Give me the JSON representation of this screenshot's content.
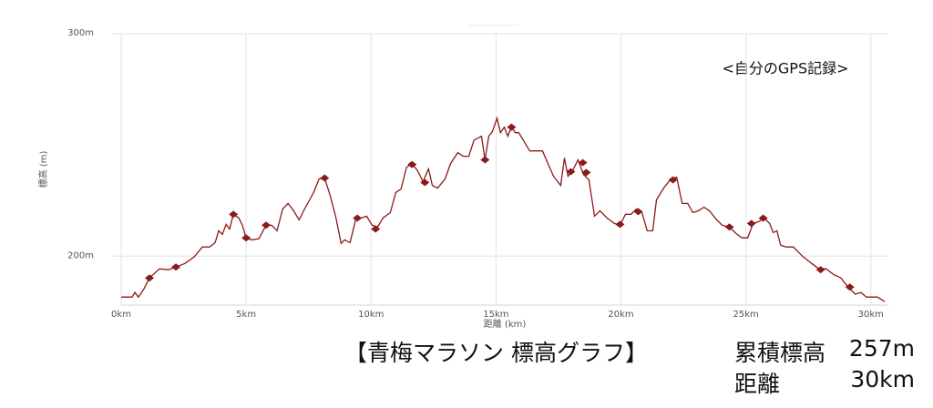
{
  "chart_data": {
    "type": "line",
    "annotation": "<自分のGPS記録>",
    "x_label": "距離 (km)",
    "y_label": "標高 (m)",
    "xlim": [
      0,
      30.7
    ],
    "ylim": [
      178,
      300
    ],
    "xticks": [
      {
        "value": 0,
        "label": "0km"
      },
      {
        "value": 5,
        "label": "5km"
      },
      {
        "value": 10,
        "label": "10km"
      },
      {
        "value": 15,
        "label": "15km"
      },
      {
        "value": 20,
        "label": "20km"
      },
      {
        "value": 25,
        "label": "25km"
      },
      {
        "value": 30,
        "label": "30km"
      }
    ],
    "yticks": [
      {
        "value": 200,
        "label": "200m"
      },
      {
        "value": 300,
        "label": "300m"
      }
    ],
    "grid": true,
    "series": [
      {
        "color": "#8b1a1a",
        "x": [
          0,
          0.44,
          0.55,
          0.69,
          0.91,
          1.13,
          1.53,
          1.9,
          2.19,
          2.55,
          2.92,
          3.25,
          3.54,
          3.76,
          3.9,
          4.05,
          4.2,
          4.34,
          4.49,
          4.71,
          4.85,
          5.0,
          5.22,
          5.51,
          5.8,
          6.02,
          6.24,
          6.46,
          6.68,
          6.9,
          7.12,
          7.34,
          7.7,
          7.92,
          8.14,
          8.36,
          8.58,
          8.8,
          8.94,
          9.16,
          9.38,
          9.6,
          9.82,
          10.04,
          10.26,
          10.47,
          10.77,
          10.99,
          11.2,
          11.42,
          11.64,
          11.86,
          12.08,
          12.3,
          12.45,
          12.66,
          12.96,
          13.18,
          13.47,
          13.69,
          13.91,
          14.12,
          14.42,
          14.56,
          14.71,
          14.85,
          15.04,
          15.18,
          15.33,
          15.47,
          15.62,
          15.77,
          15.91,
          16.13,
          16.35,
          16.86,
          17.08,
          17.3,
          17.59,
          17.74,
          17.88,
          18.1,
          18.28,
          18.5,
          18.72,
          18.94,
          19.16,
          19.45,
          19.74,
          19.96,
          20.18,
          20.4,
          20.62,
          20.84,
          21.05,
          21.27,
          21.42,
          21.71,
          22.0,
          22.23,
          22.45,
          22.67,
          22.88,
          23.1,
          23.32,
          23.54,
          23.83,
          24.05,
          24.34,
          24.64,
          24.85,
          25.07,
          25.29,
          25.51,
          25.73,
          25.95,
          26.09,
          26.24,
          26.39,
          26.61,
          26.9,
          27.26,
          27.63,
          27.92,
          28.21,
          28.5,
          28.8,
          29.09,
          29.38,
          29.6,
          29.82,
          30.26,
          30.55
        ],
        "values": [
          181.6,
          181.6,
          183.7,
          181.6,
          185.3,
          190.2,
          194.3,
          193.9,
          195.1,
          196.7,
          199.6,
          204.1,
          204.1,
          206.1,
          211.4,
          209.8,
          214.3,
          212.2,
          218.8,
          217.1,
          213.9,
          208.2,
          207.3,
          207.8,
          213.9,
          213.9,
          211.4,
          221.2,
          223.7,
          220.4,
          216.3,
          221.2,
          228.6,
          234.7,
          235.1,
          227.3,
          218.0,
          205.7,
          207.3,
          206.1,
          216.3,
          217.1,
          218.0,
          213.9,
          213.1,
          217.1,
          219.6,
          228.6,
          230.2,
          240,
          241.6,
          238.4,
          233.5,
          239.2,
          231.8,
          230.6,
          234.7,
          241.6,
          246.5,
          244.9,
          244.9,
          252.2,
          253.9,
          243.3,
          253.9,
          255.9,
          262,
          255.5,
          258,
          253.9,
          258,
          255.5,
          255.5,
          251.4,
          247.3,
          247.3,
          241.6,
          235.9,
          231.8,
          244.1,
          235.9,
          239.2,
          243.3,
          236.7,
          234.3,
          218.0,
          220.4,
          217.1,
          214.7,
          213.9,
          218.8,
          218.8,
          221.2,
          219.6,
          211.4,
          211.4,
          225.3,
          230.6,
          234.7,
          235.5,
          223.7,
          223.7,
          219.6,
          220.4,
          222.0,
          220.4,
          216.3,
          213.9,
          213.1,
          209.8,
          208.2,
          208.2,
          214.7,
          215.5,
          217.1,
          214.7,
          210.6,
          211.4,
          204.9,
          204.1,
          204.1,
          200,
          196.7,
          194.3,
          194.3,
          191.8,
          190.2,
          186.1,
          182.9,
          183.7,
          181.6,
          181.6,
          179.6
        ]
      },
      {
        "color": "#8b1a1a",
        "marker": "diamond",
        "x": [
          1.13,
          2.19,
          4.49,
          5.0,
          5.8,
          8.14,
          9.45,
          10.18,
          11.64,
          12.15,
          14.56,
          15.62,
          17.99,
          18.47,
          18.61,
          19.96,
          20.69,
          22.08,
          24.34,
          25.22,
          25.69,
          27.99,
          29.16
        ],
        "values": [
          190.2,
          195.1,
          218.8,
          208.2,
          213.9,
          235.1,
          217.1,
          212.2,
          241.2,
          233.1,
          243.3,
          258,
          238,
          242,
          237.6,
          214.3,
          220,
          234.3,
          213.1,
          214.7,
          217.1,
          193.9,
          186.1
        ]
      }
    ]
  },
  "caption": "【青梅マラソン 標高グラフ】",
  "stats": [
    {
      "label": "累積標高",
      "value": "257m"
    },
    {
      "label": "距離",
      "value": "30km"
    }
  ]
}
